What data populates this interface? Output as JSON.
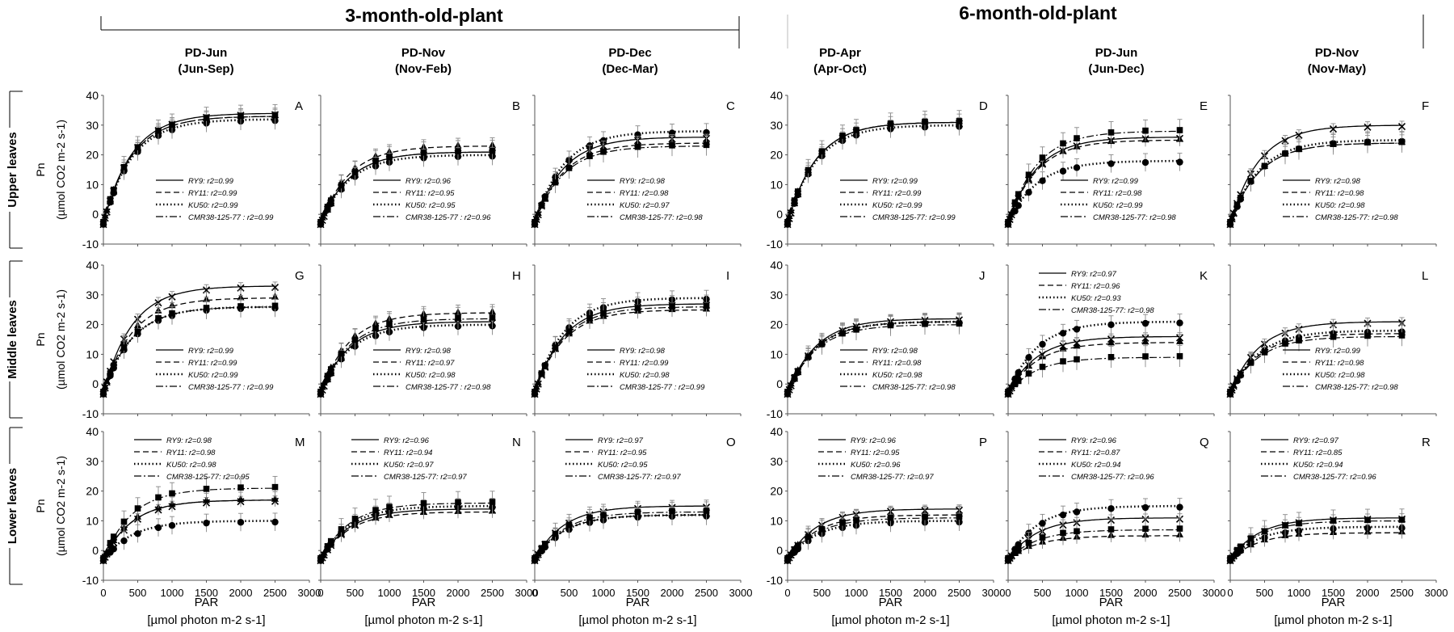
{
  "figure": {
    "group_titles": [
      "3-month-old-plant",
      "6-month-old-plant"
    ],
    "row_labels": [
      "Upper leaves",
      "Middle leaves",
      "Lower leaves"
    ],
    "ylabel": "Pn",
    "ylabel_unit": "(µmol CO2 m-2 s-1)",
    "xlabel": "PAR",
    "xlabel_unit": "[µmol photon m-2 s-1]",
    "columns": [
      {
        "title": "PD-Jun",
        "subtitle": "(Jun-Sep)"
      },
      {
        "title": "PD-Nov",
        "subtitle": "(Nov-Feb)"
      },
      {
        "title": "PD-Dec",
        "subtitle": "(Dec-Mar)"
      },
      {
        "title": "PD-Apr",
        "subtitle": "(Apr-Oct)"
      },
      {
        "title": "PD-Jun",
        "subtitle": "(Jun-Dec)"
      },
      {
        "title": "PD-Nov",
        "subtitle": "(Nov-May)"
      }
    ],
    "colors": {
      "ink": "#000000",
      "error_bar": "#888888",
      "axis": "#555555"
    }
  },
  "chart_data": {
    "type": "scatter",
    "x_axis": {
      "ticks": [
        0,
        500,
        1000,
        1500,
        2000,
        2500,
        3000
      ],
      "xlim": [
        0,
        3000
      ]
    },
    "y_axis": {
      "ticks": [
        -10,
        0,
        10,
        20,
        30,
        40
      ],
      "ylim": [
        -10,
        40
      ]
    },
    "x": [
      0,
      25,
      50,
      100,
      150,
      300,
      500,
      800,
      1000,
      1500,
      2000,
      2500
    ],
    "series_names": [
      "RY9",
      "RY11",
      "KU50",
      "CMR38-125-77"
    ],
    "series_markers": [
      "cross",
      "triangle",
      "circle",
      "square"
    ],
    "series_line_styles": [
      "solid",
      "dashed",
      "dotted",
      "dashdot"
    ],
    "panels": [
      {
        "label": "A",
        "row": 0,
        "col": 0,
        "legend": [
          "RY9: r2=0.99",
          "RY11: r2=0.99",
          "KU50: r2=0.99",
          "CMR38-125-77 : r2=0.99"
        ],
        "asym": [
          34,
          33,
          32,
          33
        ]
      },
      {
        "label": "B",
        "row": 0,
        "col": 1,
        "legend": [
          "RY9: r2=0.96",
          "RY11: r2=0.95",
          "KU50: r2=0.95",
          "CMR38-125-77 : r2=0.96"
        ],
        "asym": [
          21,
          23,
          20,
          21
        ]
      },
      {
        "label": "C",
        "row": 0,
        "col": 2,
        "legend": [
          "RY9: r2=0.98",
          "RY11: r2=0.98",
          "KU50: r2=0.97",
          "CMR38-125-77: r2=0.98"
        ],
        "asym": [
          26,
          24,
          28,
          23
        ]
      },
      {
        "label": "D",
        "row": 0,
        "col": 3,
        "legend": [
          "RY9: r2=0.99",
          "RY11: r2=0.99",
          "KU50: r2=0.99",
          "CMR38-125-77: r2=0.99"
        ],
        "asym": [
          31,
          31,
          30,
          31
        ]
      },
      {
        "label": "E",
        "row": 0,
        "col": 4,
        "legend": [
          "RY9: r2=0.99",
          "RY11: r2=0.98",
          "KU50: r2=0.99",
          "CMR38-125-77: r2=0.98"
        ],
        "asym": [
          26,
          25,
          18,
          28
        ]
      },
      {
        "label": "F",
        "row": 0,
        "col": 5,
        "legend": [
          "RY9: r2=0.98",
          "RY11: r2=0.98",
          "KU50: r2=0.98",
          "CMR38-125-77: r2=0.98"
        ],
        "asym": [
          30,
          24,
          25,
          24
        ]
      },
      {
        "label": "G",
        "row": 1,
        "col": 0,
        "legend": [
          "RY9: r2=0.99",
          "RY11: r2=0.99",
          "KU50: r2=0.99",
          "CMR38-125-77 : r2=0.99"
        ],
        "asym": [
          33,
          29,
          26,
          26
        ]
      },
      {
        "label": "H",
        "row": 1,
        "col": 1,
        "legend": [
          "RY9: r2=0.98",
          "RY11: r2=0.97",
          "KU50: r2=0.98",
          "CMR38-125-77 : r2=0.98"
        ],
        "asym": [
          21,
          24,
          20,
          22
        ]
      },
      {
        "label": "I",
        "row": 1,
        "col": 2,
        "legend": [
          "RY9: r2=0.98",
          "RY11: r2=0.99",
          "KU50: r2=0.98",
          "CMR38-125-77 : r2=0.99"
        ],
        "asym": [
          27,
          25,
          29,
          26
        ]
      },
      {
        "label": "J",
        "row": 1,
        "col": 3,
        "legend": [
          "RY9: r2=0.98",
          "RY11: r2=0.98",
          "KU50: r2=0.98",
          "CMR38-125-77: r2=0.98"
        ],
        "asym": [
          22,
          21,
          21,
          20
        ]
      },
      {
        "label": "K",
        "row": 1,
        "col": 4,
        "legend": [
          "RY9: r2=0.97",
          "RY11: r2=0.96",
          "KU50: r2=0.93",
          "CMR38-125-77: r2=0.98"
        ],
        "asym": [
          16,
          14,
          21,
          9
        ]
      },
      {
        "label": "L",
        "row": 1,
        "col": 5,
        "legend": [
          "RY9: r2=0.99",
          "RY11: r2=0.98",
          "KU50: r2=0.98",
          "CMR38-125-77: r2=0.98"
        ],
        "asym": [
          21,
          17,
          18,
          16
        ]
      },
      {
        "label": "M",
        "row": 2,
        "col": 0,
        "legend": [
          "RY9: r2=0.98",
          "RY11: r2=0.98",
          "KU50: r2=0.98",
          "CMR38-125-77: r2=0.95"
        ],
        "asym": [
          17,
          17,
          10,
          21
        ]
      },
      {
        "label": "N",
        "row": 2,
        "col": 1,
        "legend": [
          "RY9: r2=0.96",
          "RY11: r2=0.94",
          "KU50: r2=0.97",
          "CMR38-125-77: r2=0.97"
        ],
        "asym": [
          14,
          13,
          15,
          16
        ]
      },
      {
        "label": "O",
        "row": 2,
        "col": 2,
        "legend": [
          "RY9: r2=0.97",
          "RY11: r2=0.95",
          "KU50: r2=0.95",
          "CMR38-125-77: r2=0.97"
        ],
        "asym": [
          15,
          12,
          12,
          13
        ]
      },
      {
        "label": "P",
        "row": 2,
        "col": 3,
        "legend": [
          "RY9: r2=0.96",
          "RY11: r2=0.95",
          "KU50: r2=0.96",
          "CMR38-125-77: r2=0.97"
        ],
        "asym": [
          14,
          12,
          10,
          11
        ]
      },
      {
        "label": "Q",
        "row": 2,
        "col": 4,
        "legend": [
          "RY9: r2=0.96",
          "RY11: r2=0.87",
          "KU50: r2=0.94",
          "CMR38-125-77: r2=0.96"
        ],
        "asym": [
          11,
          5,
          15,
          7
        ]
      },
      {
        "label": "R",
        "row": 2,
        "col": 5,
        "legend": [
          "RY9: r2=0.97",
          "RY11: r2=0.85",
          "KU50: r2=0.94",
          "CMR38-125-77: r2=0.96"
        ],
        "asym": [
          11,
          6,
          8,
          10
        ]
      }
    ]
  }
}
